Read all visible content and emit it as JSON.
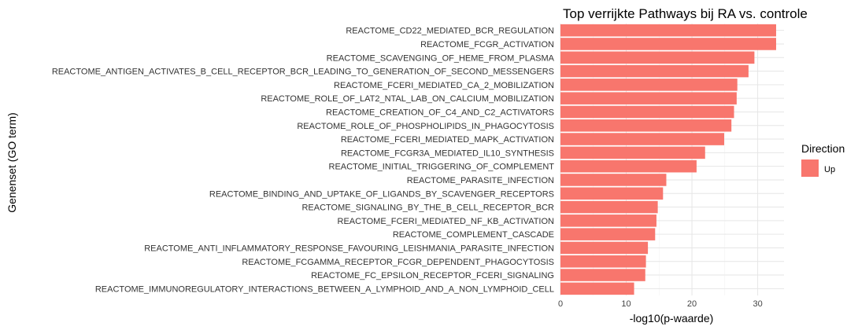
{
  "chart_data": {
    "type": "bar",
    "orientation": "horizontal",
    "title": "Top verrijkte Pathways bij RA vs. controle",
    "xlabel": "-log10(p-waarde)",
    "ylabel": "Genenset (GO term)",
    "xlim": [
      0,
      34
    ],
    "x_ticks": [
      0,
      10,
      20,
      30
    ],
    "x_tick_labels": [
      "0",
      "10",
      "20",
      "30"
    ],
    "grid": true,
    "legend": {
      "title": "Direction",
      "position": "right",
      "entries": [
        {
          "label": "Up",
          "color": "#F8766D"
        }
      ]
    },
    "categories": [
      "REACTOME_CD22_MEDIATED_BCR_REGULATION",
      "REACTOME_FCGR_ACTIVATION",
      "REACTOME_SCAVENGING_OF_HEME_FROM_PLASMA",
      "REACTOME_ANTIGEN_ACTIVATES_B_CELL_RECEPTOR_BCR_LEADING_TO_GENERATION_OF_SECOND_MESSENGERS",
      "REACTOME_FCERI_MEDIATED_CA_2_MOBILIZATION",
      "REACTOME_ROLE_OF_LAT2_NTAL_LAB_ON_CALCIUM_MOBILIZATION",
      "REACTOME_CREATION_OF_C4_AND_C2_ACTIVATORS",
      "REACTOME_ROLE_OF_PHOSPHOLIPIDS_IN_PHAGOCYTOSIS",
      "REACTOME_FCERI_MEDIATED_MAPK_ACTIVATION",
      "REACTOME_FCGR3A_MEDIATED_IL10_SYNTHESIS",
      "REACTOME_INITIAL_TRIGGERING_OF_COMPLEMENT",
      "REACTOME_PARASITE_INFECTION",
      "REACTOME_BINDING_AND_UPTAKE_OF_LIGANDS_BY_SCAVENGER_RECEPTORS",
      "REACTOME_SIGNALING_BY_THE_B_CELL_RECEPTOR_BCR",
      "REACTOME_FCERI_MEDIATED_NF_KB_ACTIVATION",
      "REACTOME_COMPLEMENT_CASCADE",
      "REACTOME_ANTI_INFLAMMATORY_RESPONSE_FAVOURING_LEISHMANIA_PARASITE_INFECTION",
      "REACTOME_FCGAMMA_RECEPTOR_FCGR_DEPENDENT_PHAGOCYTOSIS",
      "REACTOME_FC_EPSILON_RECEPTOR_FCERI_SIGNALING",
      "REACTOME_IMMUNOREGULATORY_INTERACTIONS_BETWEEN_A_LYMPHOID_AND_A_NON_LYMPHOID_CELL"
    ],
    "series": [
      {
        "name": "Up",
        "color": "#F8766D",
        "values": [
          32.8,
          32.8,
          29.5,
          28.6,
          26.9,
          26.8,
          26.4,
          26.0,
          24.9,
          22.0,
          20.7,
          16.1,
          15.6,
          14.8,
          14.6,
          14.4,
          13.3,
          13.0,
          12.9,
          11.2
        ]
      }
    ]
  }
}
